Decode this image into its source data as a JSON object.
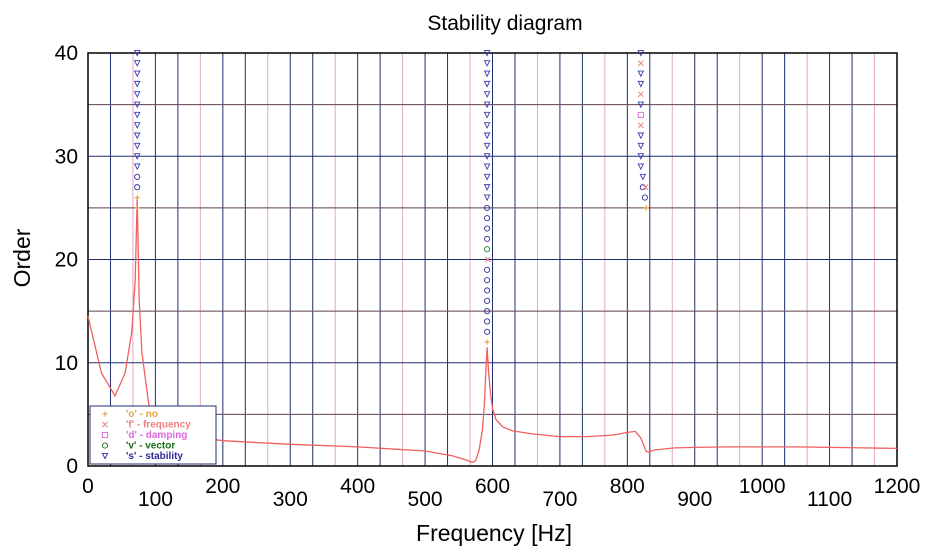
{
  "chart_data": {
    "type": "scatter",
    "title": "Stability diagram",
    "xlabel": "Frequency [Hz]",
    "ylabel": "Order",
    "xlim": [
      0,
      1200
    ],
    "ylim": [
      0,
      40
    ],
    "x_ticks": [
      "0",
      "100",
      "200",
      "300",
      "400",
      "500",
      "600",
      "700",
      "800",
      "900",
      "1000",
      "1100",
      "1200"
    ],
    "y_ticks": [
      "0",
      "10",
      "20",
      "30",
      "40"
    ],
    "grid": true,
    "legend_position": "bottom-left",
    "legend": [
      {
        "symbol": "+",
        "label": "'o' - no",
        "color": "#e8a33a"
      },
      {
        "symbol": "×",
        "label": "'f' - frequency",
        "color": "#f08080"
      },
      {
        "symbol": "□",
        "label": "'d' - damping",
        "color": "#dd66dd"
      },
      {
        "symbol": "○",
        "label": "'v' - vector",
        "color": "#1a6e1a"
      },
      {
        "symbol": "▽",
        "label": "'s' - stability",
        "color": "#2b2b9e"
      }
    ],
    "series": [
      {
        "marker": "stability-triangle",
        "color": "#3a3ab0",
        "points": [
          [
            73,
            29
          ],
          [
            73,
            30
          ],
          [
            73,
            31
          ],
          [
            73,
            32
          ],
          [
            73,
            33
          ],
          [
            73,
            34
          ],
          [
            73,
            35
          ],
          [
            73,
            36
          ],
          [
            73,
            37
          ],
          [
            73,
            38
          ],
          [
            73,
            39
          ],
          [
            73,
            40
          ],
          [
            592,
            26
          ],
          [
            592,
            27
          ],
          [
            592,
            28
          ],
          [
            592,
            29
          ],
          [
            592,
            30
          ],
          [
            592,
            31
          ],
          [
            592,
            32
          ],
          [
            592,
            33
          ],
          [
            592,
            34
          ],
          [
            592,
            35
          ],
          [
            592,
            36
          ],
          [
            592,
            37
          ],
          [
            592,
            38
          ],
          [
            592,
            39
          ],
          [
            592,
            40
          ],
          [
            820,
            29
          ],
          [
            820,
            30
          ],
          [
            820,
            31
          ],
          [
            820,
            32
          ],
          [
            820,
            35
          ],
          [
            820,
            37
          ],
          [
            820,
            38
          ],
          [
            820,
            40
          ],
          [
            823,
            28
          ]
        ]
      },
      {
        "marker": "vector-circle",
        "color": "#2b2b9e",
        "points": [
          [
            73,
            27
          ],
          [
            73,
            28
          ],
          [
            592,
            13
          ],
          [
            592,
            14
          ],
          [
            592,
            15
          ],
          [
            592,
            16
          ],
          [
            592,
            17
          ],
          [
            592,
            18
          ],
          [
            592,
            19
          ],
          [
            592,
            22
          ],
          [
            592,
            23
          ],
          [
            592,
            24
          ],
          [
            592,
            25
          ],
          [
            823,
            27
          ],
          [
            826,
            26
          ]
        ]
      },
      {
        "marker": "vector-circle",
        "color": "#1a8a1a",
        "points": [
          [
            592,
            21
          ]
        ]
      },
      {
        "marker": "frequency-cross",
        "color": "#f08080",
        "points": [
          [
            593,
            20
          ],
          [
            820,
            33
          ],
          [
            820,
            36
          ],
          [
            820,
            39
          ],
          [
            827,
            27
          ]
        ]
      },
      {
        "marker": "damping-square",
        "color": "#dd66dd",
        "points": [
          [
            820,
            34
          ]
        ]
      },
      {
        "marker": "no-plus",
        "color": "#e8a33a",
        "points": [
          [
            73,
            25
          ],
          [
            73,
            26
          ],
          [
            592,
            12
          ],
          [
            828,
            25
          ]
        ]
      }
    ],
    "frf_curve": {
      "color": "#f25f5f",
      "x": [
        0,
        20,
        40,
        55,
        65,
        70,
        73,
        76,
        80,
        90,
        100,
        120,
        150,
        200,
        300,
        400,
        500,
        540,
        560,
        570,
        575,
        580,
        585,
        588,
        590,
        592,
        594,
        597,
        600,
        605,
        615,
        630,
        660,
        700,
        740,
        780,
        800,
        812,
        820,
        828,
        832,
        840,
        870,
        900,
        950,
        1000,
        1050,
        1100,
        1150,
        1200
      ],
      "y": [
        14.5,
        9,
        6.8,
        9,
        13,
        18,
        26,
        16,
        11,
        6,
        4.3,
        3.4,
        2.9,
        2.45,
        2.1,
        1.85,
        1.45,
        1.0,
        0.6,
        0.35,
        0.5,
        1.5,
        3.5,
        6,
        9,
        11.5,
        9.2,
        7.0,
        5.6,
        4.5,
        3.8,
        3.4,
        3.1,
        2.85,
        2.85,
        3.0,
        3.25,
        3.35,
        2.7,
        1.4,
        1.35,
        1.55,
        1.75,
        1.8,
        1.85,
        1.85,
        1.85,
        1.8,
        1.75,
        1.7
      ]
    }
  }
}
